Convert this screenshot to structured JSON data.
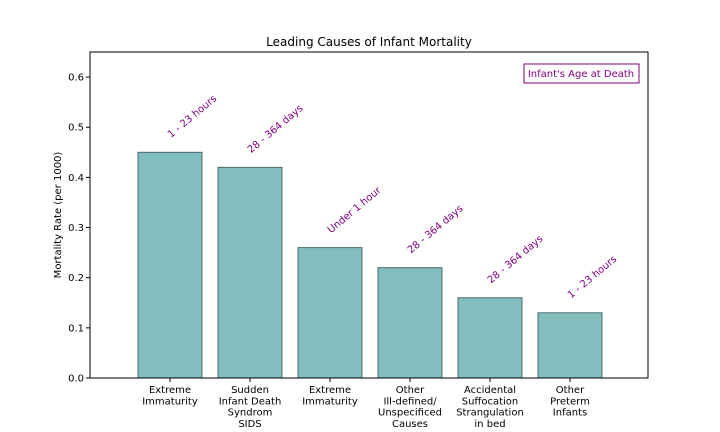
{
  "chart_data": {
    "type": "bar",
    "title": "Leading Causes of Infant Mortality",
    "xlabel": "",
    "ylabel": "Mortality Rate (per 1000)",
    "ylim": [
      0,
      0.65
    ],
    "yticks": [
      0.0,
      0.1,
      0.2,
      0.3,
      0.4,
      0.5,
      0.6
    ],
    "ytick_labels": [
      "0.0",
      "0.1",
      "0.2",
      "0.3",
      "0.4",
      "0.5",
      "0.6"
    ],
    "categories": [
      [
        "Extreme",
        "Immaturity"
      ],
      [
        "Sudden",
        "Infant Death",
        "Syndrom",
        "SIDS"
      ],
      [
        "Extreme",
        "Immaturity"
      ],
      [
        "Other",
        "Ill-defined/",
        "Unspecificed",
        "Causes"
      ],
      [
        "Accidental",
        "Suffocation",
        "Strangulation",
        "in bed"
      ],
      [
        "Other",
        "Preterm",
        "Infants"
      ]
    ],
    "values": [
      0.45,
      0.42,
      0.26,
      0.22,
      0.16,
      0.13
    ],
    "annotations": [
      "1 - 23 hours",
      "28 - 364 days",
      "Under 1 hour",
      "28 - 364 days",
      "28 - 364 days",
      "1 - 23 hours"
    ],
    "legend_title": "Infant's Age at Death",
    "legend_placement": "top-right",
    "grid": false,
    "colors": {
      "bar_fill": "#82bebe",
      "bar_edge": "#4d6b6b",
      "annotation": "#800080"
    }
  }
}
